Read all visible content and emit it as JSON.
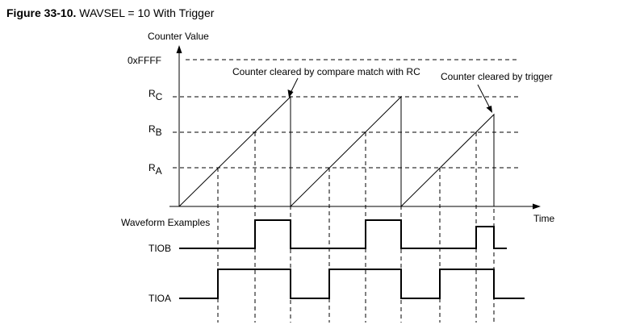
{
  "figure": {
    "label": "Figure 33-10.",
    "title": "WAVSEL = 10 With Trigger"
  },
  "axis": {
    "y_title": "Counter Value",
    "x_title": "Time",
    "levels": [
      {
        "main": "0xFFFF",
        "sub": ""
      },
      {
        "main": "R",
        "sub": "C"
      },
      {
        "main": "R",
        "sub": "B"
      },
      {
        "main": "R",
        "sub": "A"
      }
    ]
  },
  "annotations": {
    "compare_match": "Counter cleared by compare match with RC",
    "trigger": "Counter cleared by trigger"
  },
  "waveforms": {
    "section_label": "Waveform Examples",
    "tiob_label": "TIOB",
    "tioa_label": "TIOA"
  },
  "colors": {
    "ink": "#000000",
    "background": "#ffffff"
  }
}
